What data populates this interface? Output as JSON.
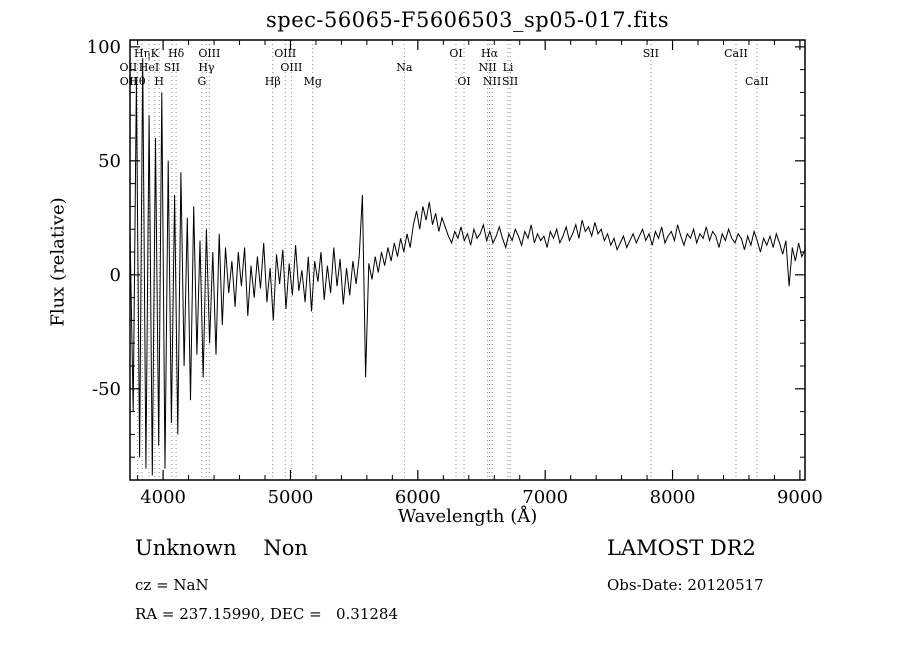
{
  "title": "spec-56065-F5606503_sp05-017.fits",
  "footer": {
    "class_label": "Unknown    Non",
    "survey": "LAMOST DR2",
    "cz": "cz = NaN",
    "obs_date": "Obs-Date: 20120517",
    "coords": "RA = 237.15990, DEC =   0.31284"
  },
  "chart_data": {
    "type": "line",
    "title": "spec-56065-F5606503_sp05-017.fits",
    "xlabel": "Wavelength (Å)",
    "ylabel": "Flux (relative)",
    "xlim": [
      3740,
      9040
    ],
    "ylim": [
      -90,
      103
    ],
    "x_ticks": [
      4000,
      5000,
      6000,
      7000,
      8000,
      9000
    ],
    "y_ticks": [
      -50,
      0,
      50,
      100
    ],
    "x_minor_step": 200,
    "y_minor_step": 10,
    "grid": "spectral-line markers only (dotted)",
    "legend": "none",
    "line_color": "#000000",
    "marker_line_color": "#8a8a8a",
    "x_start": 3740,
    "x_step": 25,
    "flux": [
      20,
      -60,
      85,
      -80,
      95,
      -85,
      70,
      -88,
      60,
      -75,
      80,
      -85,
      50,
      -65,
      35,
      -70,
      45,
      -40,
      25,
      -55,
      30,
      -35,
      15,
      -45,
      20,
      -30,
      10,
      -35,
      18,
      -22,
      12,
      -8,
      6,
      -14,
      10,
      -5,
      12,
      -18,
      4,
      -10,
      8,
      -6,
      14,
      -12,
      3,
      -20,
      9,
      -4,
      11,
      -15,
      5,
      -9,
      13,
      -7,
      2,
      -12,
      8,
      -16,
      6,
      -3,
      10,
      -11,
      4,
      -8,
      12,
      -5,
      7,
      -13,
      3,
      -9,
      6,
      -4,
      8,
      35,
      -45,
      5,
      -2,
      8,
      1,
      10,
      4,
      12,
      6,
      14,
      8,
      16,
      10,
      18,
      12,
      22,
      28,
      20,
      30,
      24,
      32,
      22,
      27,
      19,
      25,
      21,
      17,
      14,
      19,
      16,
      21,
      15,
      18,
      13,
      20,
      16,
      18,
      22,
      15,
      19,
      14,
      17,
      21,
      16,
      12,
      18,
      15,
      20,
      17,
      13,
      19,
      16,
      22,
      14,
      18,
      15,
      17,
      12,
      19,
      16,
      20,
      14,
      17,
      21,
      15,
      18,
      22,
      16,
      24,
      19,
      21,
      17,
      23,
      18,
      20,
      15,
      18,
      13,
      16,
      11,
      14,
      17,
      12,
      15,
      18,
      14,
      17,
      20,
      15,
      18,
      13,
      19,
      16,
      21,
      14,
      17,
      19,
      15,
      22,
      17,
      13,
      18,
      16,
      20,
      14,
      18,
      16,
      21,
      15,
      19,
      17,
      12,
      18,
      15,
      20,
      16,
      14,
      18,
      16,
      11,
      17,
      13,
      19,
      15,
      10,
      16,
      13,
      17,
      12,
      18,
      14,
      9,
      15,
      -5,
      12,
      6,
      14,
      8,
      11
    ],
    "spectral_lines": [
      {
        "label": "OII",
        "wavelength": 3727,
        "row": 2
      },
      {
        "label": "OII",
        "wavelength": 3729,
        "row": 3
      },
      {
        "label": "Hθ",
        "wavelength": 3798,
        "row": 3
      },
      {
        "label": "Hη",
        "wavelength": 3835,
        "row": 1
      },
      {
        "label": "HeI",
        "wavelength": 3889,
        "row": 2
      },
      {
        "label": "K",
        "wavelength": 3934,
        "row": 1
      },
      {
        "label": "H",
        "wavelength": 3969,
        "row": 3
      },
      {
        "label": "SII",
        "wavelength": 4069,
        "row": 2
      },
      {
        "label": "Hδ",
        "wavelength": 4102,
        "row": 1
      },
      {
        "label": "G",
        "wavelength": 4305,
        "row": 3
      },
      {
        "label": "Hγ",
        "wavelength": 4340,
        "row": 2
      },
      {
        "label": "OIII",
        "wavelength": 4363,
        "row": 1
      },
      {
        "label": "Hβ",
        "wavelength": 4861,
        "row": 3
      },
      {
        "label": "OIII",
        "wavelength": 4959,
        "row": 1
      },
      {
        "label": "OIII",
        "wavelength": 5007,
        "row": 2
      },
      {
        "label": "Mg",
        "wavelength": 5175,
        "row": 3
      },
      {
        "label": "Na",
        "wavelength": 5894,
        "row": 2
      },
      {
        "label": "OI",
        "wavelength": 6300,
        "row": 1
      },
      {
        "label": "OI",
        "wavelength": 6363,
        "row": 3
      },
      {
        "label": "NII",
        "wavelength": 6548,
        "row": 2
      },
      {
        "label": "Hα",
        "wavelength": 6563,
        "row": 1
      },
      {
        "label": "NII",
        "wavelength": 6583,
        "row": 3
      },
      {
        "label": "Li",
        "wavelength": 6708,
        "row": 2
      },
      {
        "label": "SII",
        "wavelength": 6725,
        "row": 3
      },
      {
        "label": "SII",
        "wavelength": 7830,
        "row": 1
      },
      {
        "label": "CaII",
        "wavelength": 8498,
        "row": 1
      },
      {
        "label": "CaII",
        "wavelength": 8662,
        "row": 3
      }
    ]
  }
}
